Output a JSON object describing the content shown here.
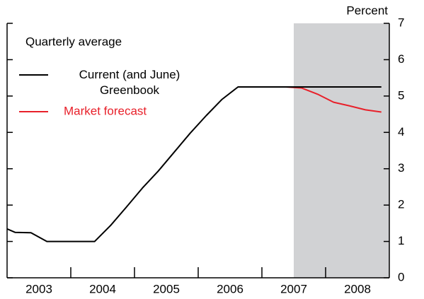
{
  "chart_data": {
    "type": "line",
    "legend_title": "Quarterly average",
    "y_label": "Percent",
    "series": [
      {
        "name": "Market forecast",
        "color": "#e8202a",
        "x": [
          2007.375,
          2007.625,
          2007.875,
          2008.125,
          2008.375,
          2008.625,
          2008.875
        ],
        "values": [
          5.25,
          5.22,
          5.05,
          4.83,
          4.73,
          4.62,
          4.56
        ]
      },
      {
        "name": "Current (and June) Greenbook",
        "color": "#000000",
        "x": [
          2002.875,
          2003.125,
          2003.375,
          2003.625,
          2003.875,
          2004.125,
          2004.375,
          2004.625,
          2004.875,
          2005.125,
          2005.375,
          2005.625,
          2005.875,
          2006.125,
          2006.375,
          2006.625,
          2006.875,
          2007.125,
          2007.375,
          2007.625,
          2007.875,
          2008.125,
          2008.375,
          2008.625,
          2008.875
        ],
        "values": [
          1.44,
          1.25,
          1.24,
          1.0,
          1.0,
          1.0,
          1.0,
          1.44,
          1.95,
          2.47,
          2.94,
          3.46,
          3.98,
          4.46,
          4.91,
          5.25,
          5.25,
          5.25,
          5.25,
          5.25,
          5.25,
          5.25,
          5.25,
          5.25,
          5.25
        ]
      }
    ],
    "xlim": [
      2003,
      2009
    ],
    "xticks": [
      {
        "value": 2003.5,
        "label": "2003"
      },
      {
        "value": 2004.5,
        "label": "2004"
      },
      {
        "value": 2005.5,
        "label": "2005"
      },
      {
        "value": 2006.5,
        "label": "2006"
      },
      {
        "value": 2007.5,
        "label": "2007"
      },
      {
        "value": 2008.5,
        "label": "2008"
      }
    ],
    "xminor_ticks": [
      2004,
      2005,
      2006,
      2007,
      2008
    ],
    "ylim": [
      0,
      7
    ],
    "yticks": [
      0,
      1,
      2,
      3,
      4,
      5,
      6,
      7
    ],
    "shaded_region": [
      2007.5,
      2009
    ],
    "shade_color": "#d1d2d4",
    "grid": false
  }
}
